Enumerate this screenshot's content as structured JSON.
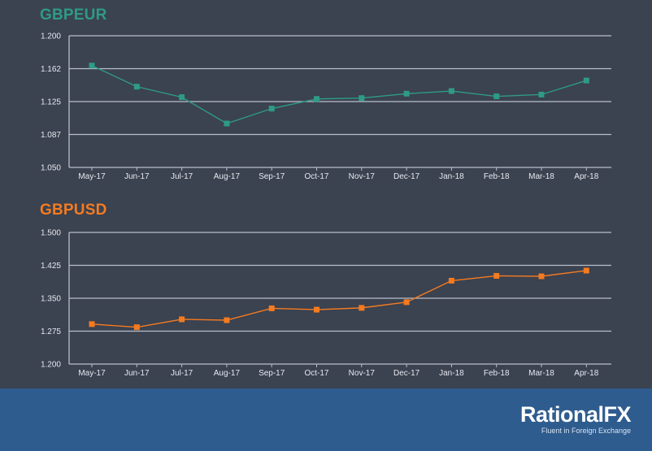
{
  "chart_data": [
    {
      "type": "line",
      "title": "GBPEUR",
      "color": "#2e9b85",
      "categories": [
        "May-17",
        "Jun-17",
        "Jul-17",
        "Aug-17",
        "Sep-17",
        "Oct-17",
        "Nov-17",
        "Dec-17",
        "Jan-18",
        "Feb-18",
        "Mar-18",
        "Apr-18"
      ],
      "series": [
        {
          "values": [
            1.166,
            1.142,
            1.13,
            1.1,
            1.117,
            1.128,
            1.129,
            1.134,
            1.137,
            1.131,
            1.133,
            1.149
          ]
        }
      ],
      "yticks": [
        "1.200",
        "1.162",
        "1.125",
        "1.087",
        "1.050"
      ],
      "ylim": [
        1.05,
        1.2
      ],
      "grid": true
    },
    {
      "type": "line",
      "title": "GBPUSD",
      "color": "#f47b20",
      "categories": [
        "May-17",
        "Jun-17",
        "Jul-17",
        "Aug-17",
        "Sep-17",
        "Oct-17",
        "Nov-17",
        "Dec-17",
        "Jan-18",
        "Feb-18",
        "Mar-18",
        "Apr-18"
      ],
      "series": [
        {
          "values": [
            1.291,
            1.284,
            1.302,
            1.3,
            1.327,
            1.324,
            1.328,
            1.341,
            1.39,
            1.401,
            1.4,
            1.413
          ]
        }
      ],
      "yticks": [
        "1.500",
        "1.425",
        "1.350",
        "1.275",
        "1.200"
      ],
      "ylim": [
        1.2,
        1.5
      ],
      "grid": true
    }
  ],
  "footer": {
    "logo": "RationalFX",
    "tagline": "Fluent in Foreign Exchange",
    "background": "#2e5c8e"
  }
}
